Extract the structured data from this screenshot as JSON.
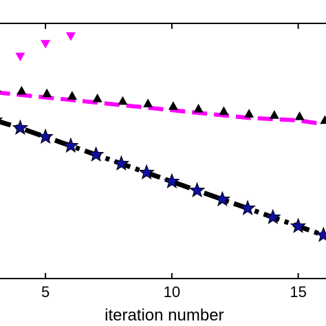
{
  "chart_data": {
    "type": "line",
    "xlabel": "iteration number",
    "ylabel": "",
    "title": "",
    "xlim": [
      3.2,
      16.1
    ],
    "ylim": [
      0,
      1
    ],
    "x_ticks": [
      5,
      10,
      15
    ],
    "x_tick_labels": [
      "5",
      "10",
      "15"
    ],
    "grid": false,
    "series": [
      {
        "style": "magenta-downtriangle-markers",
        "color": "#ff00ff",
        "line": "none",
        "x": [
          3,
          4,
          5,
          6
        ],
        "y": [
          0.82,
          0.87,
          0.92,
          0.95
        ]
      },
      {
        "style": "magenta-dashed-black-triangles",
        "color": "#ff00ff",
        "marker_color": "#000000",
        "x": [
          3,
          4,
          5,
          6,
          7,
          8,
          9,
          10,
          11,
          12,
          13,
          14,
          15,
          16
        ],
        "y": [
          0.73,
          0.72,
          0.71,
          0.7,
          0.69,
          0.68,
          0.67,
          0.66,
          0.65,
          0.64,
          0.63,
          0.625,
          0.62,
          0.605
        ]
      },
      {
        "style": "black-dashdot-blue-stars",
        "color": "#000000",
        "marker_color": "#1010a0",
        "x": [
          3,
          4,
          5,
          6,
          7,
          8,
          9,
          10,
          11,
          12,
          13,
          14,
          15,
          16
        ],
        "y": [
          0.62,
          0.59,
          0.555,
          0.52,
          0.485,
          0.45,
          0.415,
          0.38,
          0.345,
          0.31,
          0.275,
          0.24,
          0.205,
          0.17
        ]
      }
    ]
  }
}
